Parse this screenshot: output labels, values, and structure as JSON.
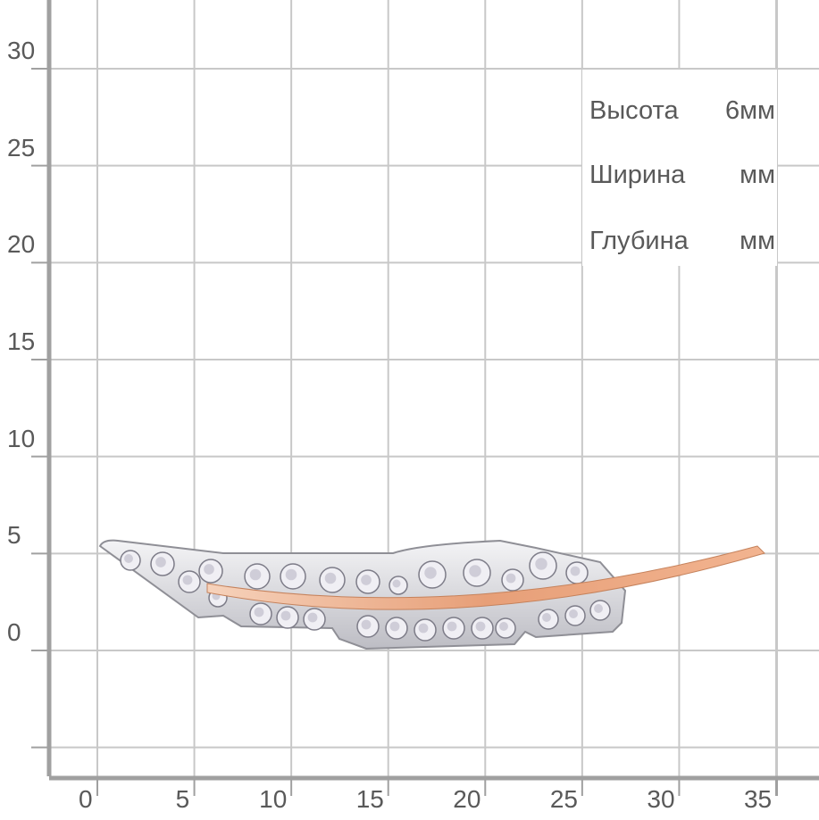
{
  "y_axis": {
    "ticks": [
      {
        "value": 30,
        "label": "30"
      },
      {
        "value": 25,
        "label": "25"
      },
      {
        "value": 20,
        "label": "20"
      },
      {
        "value": 15,
        "label": "15"
      },
      {
        "value": 10,
        "label": "10"
      },
      {
        "value": 5,
        "label": "5"
      },
      {
        "value": 0,
        "label": "0"
      }
    ]
  },
  "x_axis": {
    "ticks": [
      {
        "value": 0,
        "label": "0"
      },
      {
        "value": 5,
        "label": "5"
      },
      {
        "value": 10,
        "label": "10"
      },
      {
        "value": 15,
        "label": "15"
      },
      {
        "value": 20,
        "label": "20"
      },
      {
        "value": 25,
        "label": "25"
      },
      {
        "value": 30,
        "label": "30"
      },
      {
        "value": 35,
        "label": "35"
      }
    ]
  },
  "specs": [
    {
      "label": "Высота",
      "value": "6мм"
    },
    {
      "label": "Ширина",
      "value": "мм"
    },
    {
      "label": "Глубина",
      "value": "мм"
    }
  ],
  "colors": {
    "grid": "#c8c8c8",
    "axis": "#a0a0a0",
    "silver": "#d9d9dc",
    "gold": "#e8a078"
  },
  "product": {
    "icon": "feather-brooch-icon"
  }
}
